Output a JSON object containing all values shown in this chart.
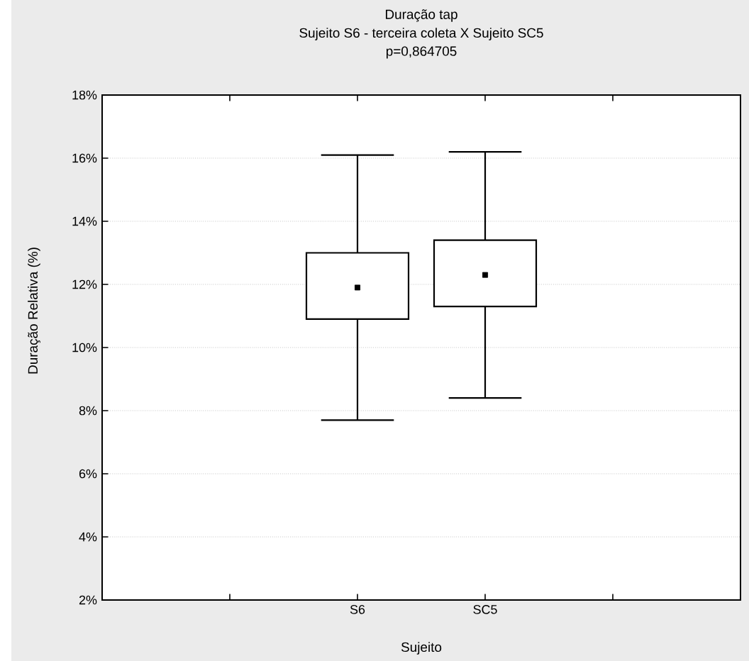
{
  "chart_data": {
    "type": "box",
    "title": "Duração tap",
    "subtitle": "Sujeito S6 - terceira coleta X Sujeito SC5",
    "annotations": [
      "p=0,864705"
    ],
    "xlabel": "Sujeito",
    "ylabel": "Duração Relativa (%)",
    "categories": [
      null,
      "S6",
      "SC5",
      null
    ],
    "boxes": [
      null,
      {
        "low": 7.7,
        "q1": 10.9,
        "median": 11.9,
        "q3": 13.0,
        "high": 16.1
      },
      {
        "low": 8.4,
        "q1": 11.3,
        "median": 12.3,
        "q3": 13.4,
        "high": 16.2
      },
      null
    ],
    "ylim": [
      2,
      18
    ],
    "yticks": [
      {
        "value": 2,
        "label": "2%"
      },
      {
        "value": 4,
        "label": "4%"
      },
      {
        "value": 6,
        "label": "6%"
      },
      {
        "value": 8,
        "label": "8%"
      },
      {
        "value": 10,
        "label": "10%"
      },
      {
        "value": 12,
        "label": "12%"
      },
      {
        "value": 14,
        "label": "14%"
      },
      {
        "value": 16,
        "label": "16%"
      },
      {
        "value": 18,
        "label": "18%"
      }
    ],
    "grid": "y",
    "marker": "square"
  }
}
